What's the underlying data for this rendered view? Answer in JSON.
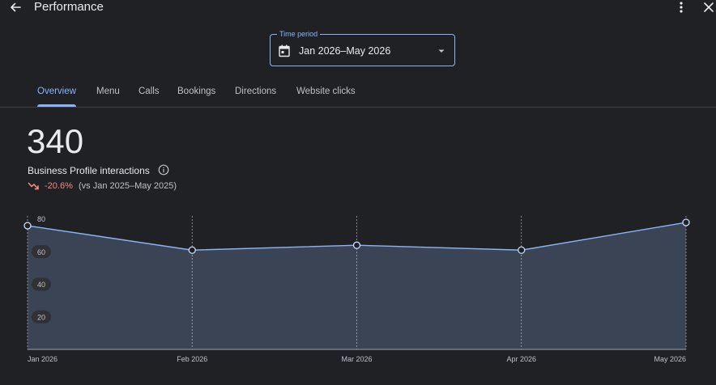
{
  "header": {
    "title": "Performance",
    "back_icon": "arrow-left-icon",
    "more_icon": "more-vert-icon",
    "close_icon": "close-icon"
  },
  "time_period": {
    "label": "Time period",
    "value": "Jan 2026–May 2026",
    "calendar_icon": "calendar-icon",
    "dropdown_icon": "caret-down-icon"
  },
  "tabs": [
    {
      "label": "Overview",
      "active": true
    },
    {
      "label": "Menu",
      "active": false
    },
    {
      "label": "Calls",
      "active": false
    },
    {
      "label": "Bookings",
      "active": false
    },
    {
      "label": "Directions",
      "active": false
    },
    {
      "label": "Website clicks",
      "active": false
    }
  ],
  "metric": {
    "value": "340",
    "label": "Business Profile interactions",
    "change": "-20.6%",
    "comparison": "(vs Jan 2025–May 2025)",
    "trend_icon": "trending-down-icon",
    "info_icon": "info-icon"
  },
  "colors": {
    "accent": "#8ab4f8",
    "negative": "#f28b82",
    "background": "#202124",
    "area_fill": "#3c4758"
  },
  "chart_data": {
    "type": "area",
    "categories": [
      "Jan 2026",
      "Feb 2026",
      "Mar 2026",
      "Apr 2026",
      "May 2026"
    ],
    "values": [
      76,
      61,
      64,
      61,
      78
    ],
    "yticks": [
      20,
      40,
      60,
      80
    ],
    "ylim": [
      0,
      84
    ],
    "grid": "vertical dashed at categories"
  }
}
